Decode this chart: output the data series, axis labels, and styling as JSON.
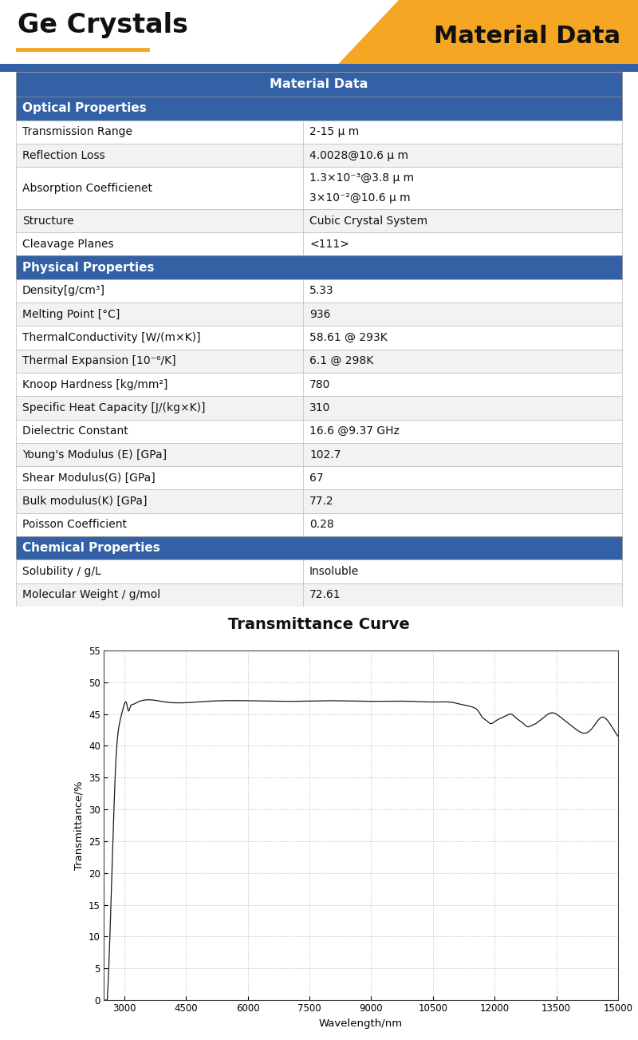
{
  "title_left": "Ge Crystals",
  "title_right": "Material Data",
  "header_color": "#3461A5",
  "section_color": "#3461A5",
  "row_colors": [
    "#FFFFFF",
    "#F2F2F2"
  ],
  "orange_color": "#F5A623",
  "table_title": "Material Data",
  "sections": [
    {
      "name": "Optical Properties",
      "rows": [
        [
          "Transmission Range",
          "2-15 μ m"
        ],
        [
          "Reflection Loss",
          "4.0028@10.6 μ m"
        ],
        [
          "Absorption Coefficienet",
          "1.3×10⁻³@3.8 μ m\n3×10⁻²@10.6 μ m"
        ],
        [
          "Structure",
          "Cubic Crystal System"
        ],
        [
          "Cleavage Planes",
          "<111>"
        ]
      ]
    },
    {
      "name": "Physical Properties",
      "rows": [
        [
          "Density[g/cm³]",
          "5.33"
        ],
        [
          "Melting Point [°C]",
          "936"
        ],
        [
          "ThermalConductivity [W/(m×K)]",
          "58.61 @ 293K"
        ],
        [
          "Thermal Expansion [10⁻⁶/K]",
          "6.1 @ 298K"
        ],
        [
          "Knoop Hardness [kg/mm²]",
          "780"
        ],
        [
          "Specific Heat Capacity [J/(kg×K)]",
          "310"
        ],
        [
          "Dielectric Constant",
          "16.6 @9.37 GHz"
        ],
        [
          "Young's Modulus (E) [GPa]",
          "102.7"
        ],
        [
          "Shear Modulus(G) [GPa]",
          "67"
        ],
        [
          "Bulk modulus(K) [GPa]",
          "77.2"
        ],
        [
          "Poisson Coefficient",
          "0.28"
        ]
      ]
    },
    {
      "name": "Chemical Properties",
      "rows": [
        [
          "Solubility / g/L",
          "Insoluble"
        ],
        [
          "Molecular Weight / g/mol",
          "72.61"
        ]
      ]
    }
  ],
  "chart_title": "Transmittance Curve",
  "xlabel": "Wavelength/nm",
  "ylabel": "Transmittance/%",
  "xmin": 2500,
  "xmax": 15000,
  "ymin": 0,
  "ymax": 55,
  "xticks": [
    3000,
    4500,
    6000,
    7500,
    9000,
    10500,
    12000,
    13500,
    15000
  ],
  "yticks": [
    0,
    5,
    10,
    15,
    20,
    25,
    30,
    35,
    40,
    45,
    50,
    55
  ]
}
